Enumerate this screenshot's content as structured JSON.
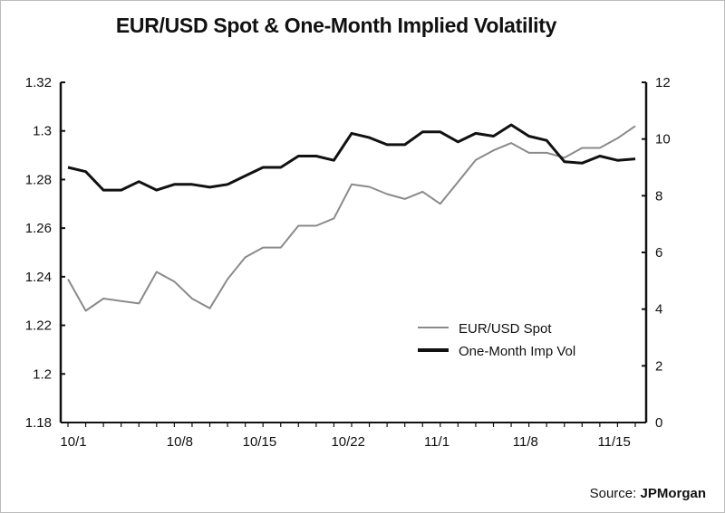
{
  "chart_data": {
    "type": "line",
    "title": "EUR/USD Spot & One-Month Implied Volatility",
    "source_label": "Source:",
    "source_name": "JPMorgan",
    "y_left": {
      "min": 1.18,
      "max": 1.32,
      "ticks": [
        "1.18",
        "1.2",
        "1.22",
        "1.24",
        "1.26",
        "1.28",
        "1.3",
        "1.32"
      ]
    },
    "y_right": {
      "min": 0,
      "max": 12,
      "ticks": [
        "0",
        "2",
        "4",
        "6",
        "8",
        "10",
        "12"
      ]
    },
    "x_ticks": [
      {
        "label": "10/1",
        "index": 0
      },
      {
        "label": "10/8",
        "index": 6
      },
      {
        "label": "10/15",
        "index": 10.5
      },
      {
        "label": "10/22",
        "index": 15.5
      },
      {
        "label": "11/1",
        "index": 20.5
      },
      {
        "label": "11/8",
        "index": 25.5
      },
      {
        "label": "11/15",
        "index": 30.5
      }
    ],
    "grid": false,
    "legend_position": "bottom-right",
    "series": [
      {
        "name": "EUR/USD Spot",
        "axis": "left",
        "color": "#8a8a8a",
        "values": [
          1.239,
          1.226,
          1.231,
          1.23,
          1.229,
          1.242,
          1.238,
          1.231,
          1.227,
          1.239,
          1.248,
          1.252,
          1.252,
          1.261,
          1.261,
          1.264,
          1.278,
          1.277,
          1.274,
          1.272,
          1.275,
          1.27,
          1.279,
          1.288,
          1.292,
          1.295,
          1.291,
          1.291,
          1.289,
          1.293,
          1.293,
          1.297,
          1.302
        ]
      },
      {
        "name": "One-Month Imp Vol",
        "axis": "right",
        "color": "#111111",
        "values": [
          9.0,
          8.85,
          8.2,
          8.2,
          8.5,
          8.2,
          8.4,
          8.4,
          8.3,
          8.4,
          8.7,
          9.0,
          9.0,
          9.4,
          9.4,
          9.25,
          10.2,
          10.05,
          9.8,
          9.8,
          10.25,
          10.25,
          9.9,
          10.2,
          10.1,
          10.5,
          10.1,
          9.95,
          9.2,
          9.15,
          9.4,
          9.25,
          9.3
        ]
      }
    ]
  }
}
